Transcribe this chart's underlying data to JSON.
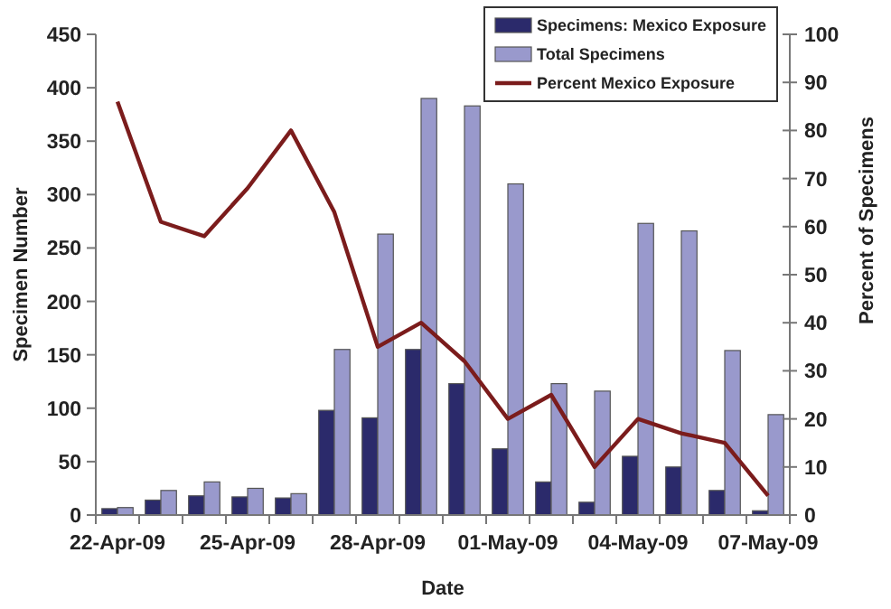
{
  "chart_data": {
    "type": "bar",
    "xlabel": "Date",
    "ylabel": "Specimen Number",
    "y2label": "Percent of Specimens",
    "categories": [
      "22-Apr-09",
      null,
      null,
      "25-Apr-09",
      null,
      null,
      "28-Apr-09",
      null,
      null,
      "01-May-09",
      null,
      null,
      "04-May-09",
      null,
      null,
      "07-May-09"
    ],
    "series": [
      {
        "name": "Specimens: Mexico Exposure",
        "color": "#2b2a6b",
        "values": [
          6,
          14,
          18,
          17,
          16,
          98,
          91,
          155,
          123,
          62,
          31,
          12,
          55,
          45,
          23,
          4
        ]
      },
      {
        "name": "Total Specimens",
        "color": "#9999cc",
        "values": [
          7,
          23,
          31,
          25,
          20,
          155,
          263,
          390,
          383,
          310,
          123,
          116,
          273,
          266,
          154,
          94
        ]
      },
      {
        "name": "Percent Mexico Exposure",
        "type": "line",
        "axis": "y2",
        "color": "#7b1c1c",
        "values": [
          86,
          61,
          58,
          68,
          80,
          63,
          35,
          40,
          32,
          20,
          25,
          10,
          20,
          17,
          15,
          4
        ]
      }
    ],
    "ylim": [
      0,
      450
    ],
    "yticks": [
      0,
      50,
      100,
      150,
      200,
      250,
      300,
      350,
      400,
      450
    ],
    "y2lim": [
      0,
      100
    ],
    "y2ticks": [
      0,
      10,
      20,
      30,
      40,
      50,
      60,
      70,
      80,
      90,
      100
    ],
    "grid": false,
    "legend": "top right",
    "marker": "none",
    "line_style": "solid"
  }
}
